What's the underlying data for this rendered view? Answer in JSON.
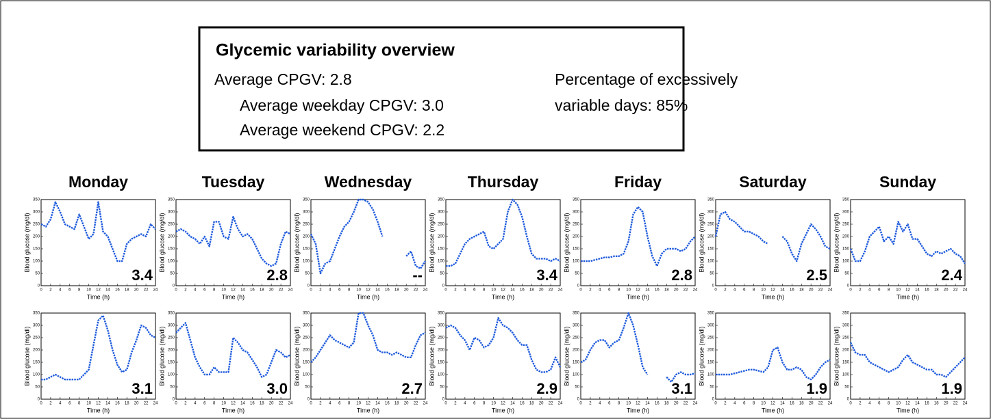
{
  "summary": {
    "title": "Glycemic variability overview",
    "average": "Average CPGV: 2.8",
    "weekday": "Average weekday CPGV: 3.0",
    "weekend": "Average weekend CPGV: 2.2",
    "percentage_line1": "Percentage of excessively",
    "percentage_line2": "variable days: 85%"
  },
  "chart_data": [
    {
      "type": "line",
      "title": "Monday",
      "annotation": "3.4",
      "xlabel": "Time (h)",
      "ylabel": "Blood glucose (mg/dl)",
      "x": [
        0,
        1,
        2,
        3,
        4,
        5,
        6,
        7,
        8,
        9,
        10,
        11,
        12,
        13,
        14,
        15,
        16,
        17,
        18,
        19,
        20,
        21,
        22,
        23,
        24
      ],
      "series": [
        {
          "color": "#1f5bdc",
          "values": [
            250,
            240,
            270,
            340,
            300,
            250,
            240,
            230,
            290,
            240,
            190,
            210,
            340,
            220,
            200,
            150,
            100,
            100,
            170,
            190,
            200,
            210,
            200,
            250,
            230
          ]
        }
      ],
      "xlim": [
        0,
        24
      ],
      "ylim": [
        0,
        350
      ],
      "xticks": [
        0,
        2,
        4,
        6,
        8,
        10,
        12,
        14,
        16,
        18,
        20,
        22,
        24
      ],
      "yticks": [
        0,
        50,
        100,
        150,
        200,
        250,
        300,
        350
      ]
    },
    {
      "type": "line",
      "title": "Tuesday",
      "annotation": "2.8",
      "xlabel": "Time (h)",
      "ylabel": "Blood glucose (mg/dl)",
      "x": [
        0,
        1,
        2,
        3,
        4,
        5,
        6,
        7,
        8,
        9,
        10,
        11,
        12,
        13,
        14,
        15,
        16,
        17,
        18,
        19,
        20,
        21,
        22,
        23,
        24
      ],
      "series": [
        {
          "color": "#1f5bdc",
          "values": [
            220,
            230,
            220,
            200,
            190,
            170,
            200,
            160,
            260,
            260,
            200,
            190,
            280,
            230,
            200,
            210,
            190,
            150,
            110,
            90,
            80,
            90,
            170,
            220,
            210
          ]
        }
      ],
      "xlim": [
        0,
        24
      ],
      "ylim": [
        0,
        350
      ],
      "xticks": [
        0,
        2,
        4,
        6,
        8,
        10,
        12,
        14,
        16,
        18,
        20,
        22,
        24
      ],
      "yticks": [
        0,
        50,
        100,
        150,
        200,
        250,
        300,
        350
      ]
    },
    {
      "type": "line",
      "title": "Wednesday",
      "annotation": "--",
      "xlabel": "Time (h)",
      "ylabel": "Blood glucose (mg/dl)",
      "x": [
        0,
        1,
        2,
        3,
        4,
        5,
        6,
        7,
        8,
        9,
        10,
        11,
        12,
        13,
        14,
        15,
        16,
        17,
        18,
        19,
        20,
        21,
        22,
        23,
        24
      ],
      "series": [
        {
          "color": "#1f5bdc",
          "values": [
            210,
            170,
            50,
            90,
            100,
            150,
            200,
            240,
            260,
            300,
            350,
            350,
            340,
            310,
            260,
            200,
            null,
            null,
            null,
            null,
            120,
            140,
            80,
            70,
            100
          ]
        }
      ],
      "xlim": [
        0,
        24
      ],
      "ylim": [
        0,
        350
      ],
      "xticks": [
        0,
        2,
        4,
        6,
        8,
        10,
        12,
        14,
        16,
        18,
        20,
        22,
        24
      ],
      "yticks": [
        0,
        50,
        100,
        150,
        200,
        250,
        300,
        350
      ]
    },
    {
      "type": "line",
      "title": "Thursday",
      "annotation": "3.4",
      "xlabel": "Time (h)",
      "ylabel": "Blood glucose (mg/dl)",
      "x": [
        0,
        1,
        2,
        3,
        4,
        5,
        6,
        7,
        8,
        9,
        10,
        11,
        12,
        13,
        14,
        15,
        16,
        17,
        18,
        19,
        20,
        21,
        22,
        23,
        24
      ],
      "series": [
        {
          "color": "#1f5bdc",
          "values": [
            80,
            80,
            90,
            130,
            170,
            190,
            200,
            210,
            220,
            160,
            150,
            170,
            190,
            300,
            350,
            330,
            280,
            200,
            130,
            110,
            110,
            110,
            100,
            110,
            100
          ]
        }
      ],
      "xlim": [
        0,
        24
      ],
      "ylim": [
        0,
        350
      ],
      "xticks": [
        0,
        2,
        4,
        6,
        8,
        10,
        12,
        14,
        16,
        18,
        20,
        22,
        24
      ],
      "yticks": [
        0,
        50,
        100,
        150,
        200,
        250,
        300,
        350
      ]
    },
    {
      "type": "line",
      "title": "Friday",
      "annotation": "2.8",
      "xlabel": "Time (h)",
      "ylabel": "Blood glucose (mg/dl)",
      "x": [
        0,
        1,
        2,
        3,
        4,
        5,
        6,
        7,
        8,
        9,
        10,
        11,
        12,
        13,
        14,
        15,
        16,
        17,
        18,
        19,
        20,
        21,
        22,
        23,
        24
      ],
      "series": [
        {
          "color": "#1f5bdc",
          "values": [
            100,
            100,
            100,
            105,
            110,
            115,
            115,
            120,
            120,
            130,
            180,
            290,
            320,
            300,
            200,
            120,
            80,
            130,
            150,
            150,
            150,
            140,
            150,
            180,
            200
          ]
        }
      ],
      "xlim": [
        0,
        24
      ],
      "ylim": [
        0,
        350
      ],
      "xticks": [
        0,
        2,
        4,
        6,
        8,
        10,
        12,
        14,
        16,
        18,
        20,
        22,
        24
      ],
      "yticks": [
        0,
        50,
        100,
        150,
        200,
        250,
        300,
        350
      ]
    },
    {
      "type": "line",
      "title": "Saturday",
      "annotation": "2.5",
      "xlabel": "Time (h)",
      "ylabel": "Blood glucose (mg/dl)",
      "x": [
        0,
        1,
        2,
        3,
        4,
        5,
        6,
        7,
        8,
        9,
        10,
        11,
        12,
        13,
        14,
        15,
        16,
        17,
        18,
        19,
        20,
        21,
        22,
        23,
        24
      ],
      "series": [
        {
          "color": "#1f5bdc",
          "values": [
            200,
            290,
            300,
            270,
            260,
            240,
            220,
            220,
            210,
            200,
            180,
            170,
            null,
            null,
            200,
            180,
            130,
            100,
            170,
            210,
            250,
            230,
            200,
            160,
            150
          ]
        }
      ],
      "xlim": [
        0,
        24
      ],
      "ylim": [
        0,
        350
      ],
      "xticks": [
        0,
        2,
        4,
        6,
        8,
        10,
        12,
        14,
        16,
        18,
        20,
        22,
        24
      ],
      "yticks": [
        0,
        50,
        100,
        150,
        200,
        250,
        300,
        350
      ]
    },
    {
      "type": "line",
      "title": "Sunday",
      "annotation": "2.4",
      "xlabel": "Time (h)",
      "ylabel": "Blood glucose (mg/dl)",
      "x": [
        0,
        1,
        2,
        3,
        4,
        5,
        6,
        7,
        8,
        9,
        10,
        11,
        12,
        13,
        14,
        15,
        16,
        17,
        18,
        19,
        20,
        21,
        22,
        23,
        24
      ],
      "series": [
        {
          "color": "#1f5bdc",
          "values": [
            150,
            100,
            100,
            140,
            200,
            220,
            240,
            180,
            200,
            170,
            260,
            220,
            250,
            190,
            190,
            160,
            130,
            120,
            140,
            130,
            140,
            150,
            130,
            120,
            90
          ]
        }
      ],
      "xlim": [
        0,
        24
      ],
      "ylim": [
        0,
        350
      ],
      "xticks": [
        0,
        2,
        4,
        6,
        8,
        10,
        12,
        14,
        16,
        18,
        20,
        22,
        24
      ],
      "yticks": [
        0,
        50,
        100,
        150,
        200,
        250,
        300,
        350
      ]
    },
    {
      "type": "line",
      "annotation": "3.1",
      "xlabel": "Time (h)",
      "ylabel": "Blood glucose (mg/dl)",
      "x": [
        0,
        1,
        2,
        3,
        4,
        5,
        6,
        7,
        8,
        9,
        10,
        11,
        12,
        13,
        14,
        15,
        16,
        17,
        18,
        19,
        20,
        21,
        22,
        23,
        24
      ],
      "series": [
        {
          "color": "#1f5bdc",
          "values": [
            80,
            80,
            90,
            100,
            90,
            80,
            80,
            80,
            80,
            100,
            120,
            220,
            320,
            340,
            280,
            200,
            140,
            110,
            120,
            190,
            240,
            300,
            290,
            260,
            250
          ]
        }
      ],
      "xlim": [
        0,
        24
      ],
      "ylim": [
        0,
        350
      ],
      "xticks": [
        0,
        2,
        4,
        6,
        8,
        10,
        12,
        14,
        16,
        18,
        20,
        22,
        24
      ],
      "yticks": [
        0,
        50,
        100,
        150,
        200,
        250,
        300,
        350
      ]
    },
    {
      "type": "line",
      "annotation": "3.0",
      "xlabel": "Time (h)",
      "ylabel": "Blood glucose (mg/dl)",
      "x": [
        0,
        1,
        2,
        3,
        4,
        5,
        6,
        7,
        8,
        9,
        10,
        11,
        12,
        13,
        14,
        15,
        16,
        17,
        18,
        19,
        20,
        21,
        22,
        23,
        24
      ],
      "series": [
        {
          "color": "#1f5bdc",
          "values": [
            270,
            290,
            310,
            240,
            170,
            130,
            100,
            100,
            130,
            110,
            110,
            110,
            250,
            230,
            200,
            190,
            160,
            130,
            90,
            100,
            150,
            200,
            190,
            170,
            180
          ]
        }
      ],
      "xlim": [
        0,
        24
      ],
      "ylim": [
        0,
        350
      ],
      "xticks": [
        0,
        2,
        4,
        6,
        8,
        10,
        12,
        14,
        16,
        18,
        20,
        22,
        24
      ],
      "yticks": [
        0,
        50,
        100,
        150,
        200,
        250,
        300,
        350
      ]
    },
    {
      "type": "line",
      "annotation": "2.7",
      "xlabel": "Time (h)",
      "ylabel": "Blood glucose (mg/dl)",
      "x": [
        0,
        1,
        2,
        3,
        4,
        5,
        6,
        7,
        8,
        9,
        10,
        11,
        12,
        13,
        14,
        15,
        16,
        17,
        18,
        19,
        20,
        21,
        22,
        23,
        24
      ],
      "series": [
        {
          "color": "#1f5bdc",
          "values": [
            150,
            170,
            200,
            230,
            260,
            240,
            230,
            220,
            210,
            230,
            350,
            350,
            300,
            260,
            200,
            190,
            190,
            180,
            190,
            180,
            170,
            170,
            220,
            260,
            270
          ]
        }
      ],
      "xlim": [
        0,
        24
      ],
      "ylim": [
        0,
        350
      ],
      "xticks": [
        0,
        2,
        4,
        6,
        8,
        10,
        12,
        14,
        16,
        18,
        20,
        22,
        24
      ],
      "yticks": [
        0,
        50,
        100,
        150,
        200,
        250,
        300,
        350
      ]
    },
    {
      "type": "line",
      "annotation": "2.9",
      "xlabel": "Time (h)",
      "ylabel": "Blood glucose (mg/dl)",
      "x": [
        0,
        1,
        2,
        3,
        4,
        5,
        6,
        7,
        8,
        9,
        10,
        11,
        12,
        13,
        14,
        15,
        16,
        17,
        18,
        19,
        20,
        21,
        22,
        23,
        24
      ],
      "series": [
        {
          "color": "#1f5bdc",
          "values": [
            290,
            300,
            290,
            260,
            240,
            200,
            250,
            240,
            210,
            220,
            250,
            330,
            300,
            290,
            270,
            240,
            220,
            220,
            160,
            120,
            110,
            110,
            120,
            170,
            130
          ]
        }
      ],
      "xlim": [
        0,
        24
      ],
      "ylim": [
        0,
        350
      ],
      "xticks": [
        0,
        2,
        4,
        6,
        8,
        10,
        12,
        14,
        16,
        18,
        20,
        22,
        24
      ],
      "yticks": [
        0,
        50,
        100,
        150,
        200,
        250,
        300,
        350
      ]
    },
    {
      "type": "line",
      "annotation": "3.1",
      "xlabel": "Time (h)",
      "ylabel": "Blood glucose (mg/dl)",
      "x": [
        0,
        1,
        2,
        3,
        4,
        5,
        6,
        7,
        8,
        9,
        10,
        11,
        12,
        13,
        14,
        15,
        16,
        17,
        18,
        19,
        20,
        21,
        22,
        23,
        24
      ],
      "series": [
        {
          "color": "#1f5bdc",
          "values": [
            150,
            160,
            200,
            230,
            240,
            240,
            210,
            230,
            240,
            290,
            350,
            300,
            220,
            130,
            100,
            null,
            null,
            null,
            90,
            70,
            100,
            110,
            100,
            100,
            105
          ]
        }
      ],
      "xlim": [
        0,
        24
      ],
      "ylim": [
        0,
        350
      ],
      "xticks": [
        0,
        2,
        4,
        6,
        8,
        10,
        12,
        14,
        16,
        18,
        20,
        22,
        24
      ],
      "yticks": [
        0,
        50,
        100,
        150,
        200,
        250,
        300,
        350
      ]
    },
    {
      "type": "line",
      "annotation": "1.9",
      "xlabel": "Time (h)",
      "ylabel": "Blood glucose (mg/dl)",
      "x": [
        0,
        1,
        2,
        3,
        4,
        5,
        6,
        7,
        8,
        9,
        10,
        11,
        12,
        13,
        14,
        15,
        16,
        17,
        18,
        19,
        20,
        21,
        22,
        23,
        24
      ],
      "series": [
        {
          "color": "#1f5bdc",
          "values": [
            100,
            100,
            100,
            100,
            105,
            110,
            115,
            120,
            120,
            115,
            110,
            130,
            200,
            210,
            150,
            120,
            120,
            130,
            120,
            90,
            80,
            100,
            130,
            150,
            160
          ]
        }
      ],
      "xlim": [
        0,
        24
      ],
      "ylim": [
        0,
        350
      ],
      "xticks": [
        0,
        2,
        4,
        6,
        8,
        10,
        12,
        14,
        16,
        18,
        20,
        22,
        24
      ],
      "yticks": [
        0,
        50,
        100,
        150,
        200,
        250,
        300,
        350
      ]
    },
    {
      "type": "line",
      "annotation": "1.9",
      "xlabel": "Time (h)",
      "ylabel": "Blood glucose (mg/dl)",
      "x": [
        0,
        1,
        2,
        3,
        4,
        5,
        6,
        7,
        8,
        9,
        10,
        11,
        12,
        13,
        14,
        15,
        16,
        17,
        18,
        19,
        20,
        21,
        22,
        23,
        24
      ],
      "series": [
        {
          "color": "#1f5bdc",
          "values": [
            230,
            190,
            180,
            180,
            150,
            140,
            130,
            120,
            110,
            120,
            130,
            160,
            180,
            150,
            140,
            130,
            120,
            120,
            100,
            100,
            90,
            110,
            130,
            150,
            170
          ]
        }
      ],
      "xlim": [
        0,
        24
      ],
      "ylim": [
        0,
        350
      ],
      "xticks": [
        0,
        2,
        4,
        6,
        8,
        10,
        12,
        14,
        16,
        18,
        20,
        22,
        24
      ],
      "yticks": [
        0,
        50,
        100,
        150,
        200,
        250,
        300,
        350
      ]
    }
  ]
}
